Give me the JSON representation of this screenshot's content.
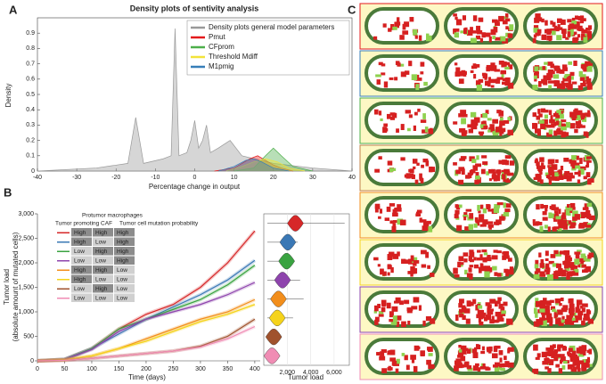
{
  "panel_labels": [
    "A",
    "B",
    "C"
  ],
  "chart_data": [
    {
      "type": "density",
      "title": "Density plots of sentivity analysis",
      "xlabel": "Percentage change in output",
      "ylabel": "Density",
      "xlim": [
        -40,
        40
      ],
      "xticks": [
        -40,
        -30,
        -20,
        -10,
        0,
        10,
        20,
        30,
        40
      ],
      "ylim": [
        0,
        1
      ],
      "yticks": [
        0,
        0.1,
        0.2,
        0.3,
        0.4,
        0.5,
        0.6,
        0.7,
        0.8,
        0.9
      ],
      "legend": "upper right",
      "series": [
        {
          "name": "Density plots general model parameters",
          "color": "#999999",
          "x": [
            -40,
            -25,
            -17,
            -15,
            -13,
            -8,
            -6,
            -5,
            -4,
            -2,
            -1,
            0,
            1,
            2,
            3,
            4,
            6,
            9,
            12,
            20,
            30,
            40
          ],
          "values": [
            0,
            0.02,
            0.05,
            0.35,
            0.05,
            0.08,
            0.1,
            0.93,
            0.1,
            0.12,
            0.2,
            0.33,
            0.15,
            0.2,
            0.3,
            0.12,
            0.15,
            0.2,
            0.1,
            0.05,
            0.02,
            0
          ]
        },
        {
          "name": "Pmut",
          "color": "#e41a1c",
          "x": [
            5,
            10,
            12,
            14,
            16,
            18,
            20,
            22,
            25
          ],
          "values": [
            0,
            0.02,
            0.05,
            0.08,
            0.1,
            0.07,
            0.04,
            0.02,
            0
          ]
        },
        {
          "name": "CFprom",
          "color": "#4daf4a",
          "x": [
            10,
            15,
            18,
            20,
            22,
            25,
            30
          ],
          "values": [
            0,
            0.02,
            0.1,
            0.15,
            0.1,
            0.03,
            0
          ]
        },
        {
          "name": "Threshold Mdiff",
          "color": "#f2e33a",
          "x": [
            8,
            12,
            15,
            18,
            21,
            24,
            28
          ],
          "values": [
            0,
            0.03,
            0.06,
            0.08,
            0.06,
            0.02,
            0
          ]
        },
        {
          "name": "M1pmig",
          "color": "#377eb8",
          "x": [
            6,
            10,
            13,
            15,
            17,
            20,
            24
          ],
          "values": [
            0,
            0.03,
            0.07,
            0.08,
            0.06,
            0.02,
            0
          ]
        }
      ]
    },
    {
      "type": "line",
      "xlabel": "Time (days)",
      "ylabel": [
        "Tumor load",
        "(absolute amount of mutated cells)"
      ],
      "xlim": [
        0,
        410
      ],
      "xticks": [
        0,
        50,
        100,
        150,
        200,
        250,
        300,
        350,
        400
      ],
      "ylim": [
        0,
        3000
      ],
      "yticks": [
        0,
        500,
        {
          "value": 1000,
          "label": "1,000"
        },
        {
          "value": 1500,
          "label": "1,500"
        },
        {
          "value": 2000,
          "label": "2,000"
        },
        {
          "value": 2500,
          "label": "2,500"
        },
        {
          "value": 3000,
          "label": "3,000"
        }
      ],
      "x": [
        0,
        50,
        100,
        150,
        200,
        250,
        300,
        350,
        400
      ],
      "series": [
        {
          "color": "#d62728",
          "values": [
            0,
            30,
            250,
            650,
            950,
            1150,
            1500,
            2000,
            2650
          ]
        },
        {
          "color": "#3a78b5",
          "values": [
            0,
            30,
            250,
            550,
            850,
            1100,
            1350,
            1650,
            2050
          ]
        },
        {
          "color": "#3aa341",
          "values": [
            0,
            30,
            250,
            650,
            850,
            1050,
            1250,
            1550,
            1950
          ]
        },
        {
          "color": "#8e44ad",
          "values": [
            0,
            30,
            230,
            600,
            850,
            1000,
            1150,
            1350,
            1600
          ]
        },
        {
          "color": "#f28e1c",
          "values": [
            0,
            20,
            100,
            250,
            450,
            650,
            850,
            1000,
            1250
          ]
        },
        {
          "color": "#f5d31b",
          "values": [
            0,
            20,
            100,
            250,
            400,
            600,
            800,
            950,
            1150
          ]
        },
        {
          "color": "#a0522d",
          "values": [
            0,
            10,
            50,
            100,
            150,
            200,
            300,
            500,
            850
          ]
        },
        {
          "color": "#f08cb4",
          "values": [
            0,
            10,
            50,
            100,
            150,
            200,
            280,
            450,
            700
          ]
        }
      ],
      "table": {
        "columns": [
          "Tumor promoting CAF",
          "Protumor macrophages",
          "Tumor cell mutation probability"
        ],
        "rows": [
          [
            "High",
            "High",
            "High"
          ],
          [
            "High",
            "Low",
            "High"
          ],
          [
            "Low",
            "High",
            "High"
          ],
          [
            "Low",
            "Low",
            "High"
          ],
          [
            "High",
            "High",
            "Low"
          ],
          [
            "High",
            "Low",
            "Low"
          ],
          [
            "Low",
            "High",
            "Low"
          ],
          [
            "Low",
            "Low",
            "Low"
          ]
        ]
      }
    },
    {
      "type": "violin",
      "xlabel": "Tumor load",
      "xlim": [
        0,
        7300
      ],
      "xticks": [
        {
          "value": 2000,
          "label": "2,000"
        },
        {
          "value": 4000,
          "label": "4,000"
        },
        {
          "value": 6000,
          "label": "6,000"
        }
      ],
      "colors": [
        "#d62728",
        "#3a78b5",
        "#3aa341",
        "#8e44ad",
        "#f28e1c",
        "#f5d31b",
        "#a0522d",
        "#f08cb4"
      ],
      "values": [
        2700,
        2050,
        1950,
        1600,
        1250,
        1150,
        850,
        700
      ],
      "max": [
        6900,
        2900,
        2500,
        3100,
        3400,
        2500,
        1300,
        1200
      ]
    }
  ]
}
